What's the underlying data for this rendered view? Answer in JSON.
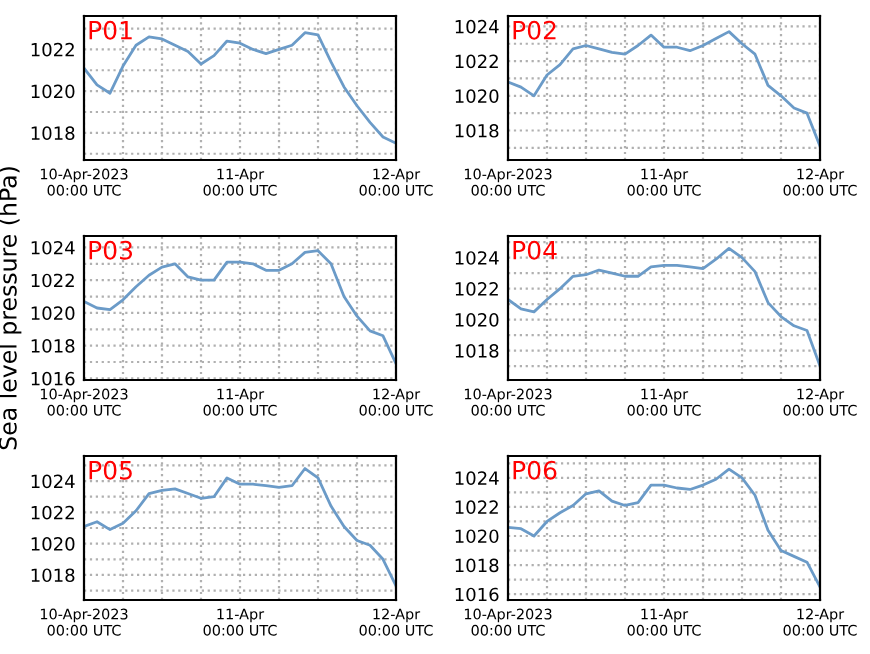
{
  "chart_data": [
    {
      "type": "line",
      "title": "P01",
      "x": [
        "2023-04-10T00:00",
        "2023-04-10T02:00",
        "2023-04-10T04:00",
        "2023-04-10T06:00",
        "2023-04-10T08:00",
        "2023-04-10T10:00",
        "2023-04-10T12:00",
        "2023-04-10T14:00",
        "2023-04-10T16:00",
        "2023-04-10T18:00",
        "2023-04-10T20:00",
        "2023-04-10T22:00",
        "2023-04-11T00:00",
        "2023-04-11T02:00",
        "2023-04-11T04:00",
        "2023-04-11T06:00",
        "2023-04-11T08:00",
        "2023-04-11T10:00",
        "2023-04-11T12:00",
        "2023-04-11T14:00",
        "2023-04-11T16:00",
        "2023-04-11T18:00",
        "2023-04-11T20:00",
        "2023-04-11T22:00",
        "2023-04-12T00:00"
      ],
      "series": [
        {
          "color": "#6b9bc8",
          "values": [
            1021.1,
            1020.3,
            1019.9,
            1021.2,
            1022.2,
            1022.6,
            1022.5,
            1022.2,
            1021.9,
            1021.3,
            1021.7,
            1022.4,
            1022.3,
            1022.0,
            1021.8,
            1022.0,
            1022.2,
            1022.8,
            1022.7,
            1021.4,
            1020.2,
            1019.3,
            1018.5,
            1017.8,
            1017.5
          ]
        }
      ],
      "xlim": [
        "2023-04-10T00:00",
        "2023-04-12T00:00"
      ],
      "xticks": [
        {
          "value": "2023-04-10T00:00",
          "label": "10-Apr-2023\n00:00 UTC"
        },
        {
          "value": "2023-04-10T06:00",
          "label": null
        },
        {
          "value": "2023-04-10T12:00",
          "label": null
        },
        {
          "value": "2023-04-10T18:00",
          "label": null
        },
        {
          "value": "2023-04-11T00:00",
          "label": "11-Apr\n00:00 UTC"
        },
        {
          "value": "2023-04-11T06:00",
          "label": null
        },
        {
          "value": "2023-04-11T12:00",
          "label": null
        },
        {
          "value": "2023-04-11T18:00",
          "label": null
        },
        {
          "value": "2023-04-12T00:00",
          "label": "12-Apr\n00:00 UTC"
        }
      ],
      "ylim": [
        1016.7,
        1023.6
      ],
      "yticks": [
        {
          "value": 1017,
          "label": null
        },
        1018,
        {
          "value": 1019,
          "label": null
        },
        1020,
        {
          "value": 1021,
          "label": null
        },
        1022,
        {
          "value": 1023,
          "label": null
        }
      ],
      "grid": true,
      "line_style": "solid",
      "marker": "none",
      "legend": false
    },
    {
      "type": "line",
      "title": "P02",
      "x": [
        "2023-04-10T00:00",
        "2023-04-10T02:00",
        "2023-04-10T04:00",
        "2023-04-10T06:00",
        "2023-04-10T08:00",
        "2023-04-10T10:00",
        "2023-04-10T12:00",
        "2023-04-10T14:00",
        "2023-04-10T16:00",
        "2023-04-10T18:00",
        "2023-04-10T20:00",
        "2023-04-10T22:00",
        "2023-04-11T00:00",
        "2023-04-11T02:00",
        "2023-04-11T04:00",
        "2023-04-11T06:00",
        "2023-04-11T08:00",
        "2023-04-11T10:00",
        "2023-04-11T12:00",
        "2023-04-11T14:00",
        "2023-04-11T16:00",
        "2023-04-11T18:00",
        "2023-04-11T20:00",
        "2023-04-11T22:00",
        "2023-04-12T00:00"
      ],
      "series": [
        {
          "color": "#6b9bc8",
          "values": [
            1020.8,
            1020.5,
            1020.0,
            1021.2,
            1021.8,
            1022.7,
            1022.9,
            1022.7,
            1022.5,
            1022.4,
            1022.9,
            1023.5,
            1022.8,
            1022.8,
            1022.6,
            1022.9,
            1023.3,
            1023.7,
            1023.0,
            1022.4,
            1020.6,
            1020.0,
            1019.3,
            1019.0,
            1017.1
          ]
        }
      ],
      "xlim": [
        "2023-04-10T00:00",
        "2023-04-12T00:00"
      ],
      "xticks": [
        {
          "value": "2023-04-10T00:00",
          "label": "10-Apr-2023\n00:00 UTC"
        },
        {
          "value": "2023-04-10T06:00",
          "label": null
        },
        {
          "value": "2023-04-10T12:00",
          "label": null
        },
        {
          "value": "2023-04-10T18:00",
          "label": null
        },
        {
          "value": "2023-04-11T00:00",
          "label": "11-Apr\n00:00 UTC"
        },
        {
          "value": "2023-04-11T06:00",
          "label": null
        },
        {
          "value": "2023-04-11T12:00",
          "label": null
        },
        {
          "value": "2023-04-11T18:00",
          "label": null
        },
        {
          "value": "2023-04-12T00:00",
          "label": "12-Apr\n00:00 UTC"
        }
      ],
      "ylim": [
        1016.3,
        1024.6
      ],
      "yticks": [
        {
          "value": 1017,
          "label": null
        },
        1018,
        {
          "value": 1019,
          "label": null
        },
        1020,
        {
          "value": 1021,
          "label": null
        },
        1022,
        {
          "value": 1023,
          "label": null
        },
        1024
      ],
      "grid": true,
      "line_style": "solid",
      "marker": "none",
      "legend": false
    },
    {
      "type": "line",
      "title": "P03",
      "ylabel": "Sea level pressure (hPa)",
      "x": [
        "2023-04-10T00:00",
        "2023-04-10T02:00",
        "2023-04-10T04:00",
        "2023-04-10T06:00",
        "2023-04-10T08:00",
        "2023-04-10T10:00",
        "2023-04-10T12:00",
        "2023-04-10T14:00",
        "2023-04-10T16:00",
        "2023-04-10T18:00",
        "2023-04-10T20:00",
        "2023-04-10T22:00",
        "2023-04-11T00:00",
        "2023-04-11T02:00",
        "2023-04-11T04:00",
        "2023-04-11T06:00",
        "2023-04-11T08:00",
        "2023-04-11T10:00",
        "2023-04-11T12:00",
        "2023-04-11T14:00",
        "2023-04-11T16:00",
        "2023-04-11T18:00",
        "2023-04-11T20:00",
        "2023-04-11T22:00",
        "2023-04-12T00:00"
      ],
      "series": [
        {
          "color": "#6b9bc8",
          "values": [
            1020.7,
            1020.3,
            1020.2,
            1020.8,
            1021.6,
            1022.3,
            1022.8,
            1023.0,
            1022.2,
            1022.0,
            1022.0,
            1023.1,
            1023.1,
            1023.0,
            1022.6,
            1022.6,
            1023.0,
            1023.7,
            1023.8,
            1023.0,
            1021.0,
            1019.8,
            1018.9,
            1018.6,
            1016.9
          ]
        }
      ],
      "xlim": [
        "2023-04-10T00:00",
        "2023-04-12T00:00"
      ],
      "xticks": [
        {
          "value": "2023-04-10T00:00",
          "label": "10-Apr-2023\n00:00 UTC"
        },
        {
          "value": "2023-04-10T06:00",
          "label": null
        },
        {
          "value": "2023-04-10T12:00",
          "label": null
        },
        {
          "value": "2023-04-10T18:00",
          "label": null
        },
        {
          "value": "2023-04-11T00:00",
          "label": "11-Apr\n00:00 UTC"
        },
        {
          "value": "2023-04-11T06:00",
          "label": null
        },
        {
          "value": "2023-04-11T12:00",
          "label": null
        },
        {
          "value": "2023-04-11T18:00",
          "label": null
        },
        {
          "value": "2023-04-12T00:00",
          "label": "12-Apr\n00:00 UTC"
        }
      ],
      "ylim": [
        1015.9,
        1024.7
      ],
      "yticks": [
        1016,
        {
          "value": 1017,
          "label": null
        },
        1018,
        {
          "value": 1019,
          "label": null
        },
        1020,
        {
          "value": 1021,
          "label": null
        },
        1022,
        {
          "value": 1023,
          "label": null
        },
        1024
      ],
      "grid": true,
      "line_style": "solid",
      "marker": "none",
      "legend": false
    },
    {
      "type": "line",
      "title": "P04",
      "x": [
        "2023-04-10T00:00",
        "2023-04-10T02:00",
        "2023-04-10T04:00",
        "2023-04-10T06:00",
        "2023-04-10T08:00",
        "2023-04-10T10:00",
        "2023-04-10T12:00",
        "2023-04-10T14:00",
        "2023-04-10T16:00",
        "2023-04-10T18:00",
        "2023-04-10T20:00",
        "2023-04-10T22:00",
        "2023-04-11T00:00",
        "2023-04-11T02:00",
        "2023-04-11T04:00",
        "2023-04-11T06:00",
        "2023-04-11T08:00",
        "2023-04-11T10:00",
        "2023-04-11T12:00",
        "2023-04-11T14:00",
        "2023-04-11T16:00",
        "2023-04-11T18:00",
        "2023-04-11T20:00",
        "2023-04-11T22:00",
        "2023-04-12T00:00"
      ],
      "series": [
        {
          "color": "#6b9bc8",
          "values": [
            1021.3,
            1020.7,
            1020.5,
            1021.3,
            1022.0,
            1022.8,
            1022.9,
            1023.2,
            1023.0,
            1022.8,
            1022.8,
            1023.4,
            1023.5,
            1023.5,
            1023.4,
            1023.3,
            1023.9,
            1024.6,
            1024.0,
            1023.1,
            1021.1,
            1020.2,
            1019.6,
            1019.3,
            1017.0
          ]
        }
      ],
      "xlim": [
        "2023-04-10T00:00",
        "2023-04-12T00:00"
      ],
      "xticks": [
        {
          "value": "2023-04-10T00:00",
          "label": "10-Apr-2023\n00:00 UTC"
        },
        {
          "value": "2023-04-10T06:00",
          "label": null
        },
        {
          "value": "2023-04-10T12:00",
          "label": null
        },
        {
          "value": "2023-04-10T18:00",
          "label": null
        },
        {
          "value": "2023-04-11T00:00",
          "label": "11-Apr\n00:00 UTC"
        },
        {
          "value": "2023-04-11T06:00",
          "label": null
        },
        {
          "value": "2023-04-11T12:00",
          "label": null
        },
        {
          "value": "2023-04-11T18:00",
          "label": null
        },
        {
          "value": "2023-04-12T00:00",
          "label": "12-Apr\n00:00 UTC"
        }
      ],
      "ylim": [
        1016.1,
        1025.4
      ],
      "yticks": [
        {
          "value": 1017,
          "label": null
        },
        1018,
        {
          "value": 1019,
          "label": null
        },
        1020,
        {
          "value": 1021,
          "label": null
        },
        1022,
        {
          "value": 1023,
          "label": null
        },
        1024,
        {
          "value": 1025,
          "label": null
        }
      ],
      "grid": true,
      "line_style": "solid",
      "marker": "none",
      "legend": false
    },
    {
      "type": "line",
      "title": "P05",
      "x": [
        "2023-04-10T00:00",
        "2023-04-10T02:00",
        "2023-04-10T04:00",
        "2023-04-10T06:00",
        "2023-04-10T08:00",
        "2023-04-10T10:00",
        "2023-04-10T12:00",
        "2023-04-10T14:00",
        "2023-04-10T16:00",
        "2023-04-10T18:00",
        "2023-04-10T20:00",
        "2023-04-10T22:00",
        "2023-04-11T00:00",
        "2023-04-11T02:00",
        "2023-04-11T04:00",
        "2023-04-11T06:00",
        "2023-04-11T08:00",
        "2023-04-11T10:00",
        "2023-04-11T12:00",
        "2023-04-11T14:00",
        "2023-04-11T16:00",
        "2023-04-11T18:00",
        "2023-04-11T20:00",
        "2023-04-11T22:00",
        "2023-04-12T00:00"
      ],
      "series": [
        {
          "color": "#6b9bc8",
          "values": [
            1021.1,
            1021.4,
            1020.9,
            1021.3,
            1022.1,
            1023.2,
            1023.4,
            1023.5,
            1023.2,
            1022.9,
            1023.0,
            1024.2,
            1023.8,
            1023.8,
            1023.7,
            1023.6,
            1023.7,
            1024.8,
            1024.2,
            1022.4,
            1021.1,
            1020.2,
            1019.9,
            1019.0,
            1017.3
          ]
        }
      ],
      "xlim": [
        "2023-04-10T00:00",
        "2023-04-12T00:00"
      ],
      "xticks": [
        {
          "value": "2023-04-10T00:00",
          "label": "10-Apr-2023\n00:00 UTC"
        },
        {
          "value": "2023-04-10T06:00",
          "label": null
        },
        {
          "value": "2023-04-10T12:00",
          "label": null
        },
        {
          "value": "2023-04-10T18:00",
          "label": null
        },
        {
          "value": "2023-04-11T00:00",
          "label": "11-Apr\n00:00 UTC"
        },
        {
          "value": "2023-04-11T06:00",
          "label": null
        },
        {
          "value": "2023-04-11T12:00",
          "label": null
        },
        {
          "value": "2023-04-11T18:00",
          "label": null
        },
        {
          "value": "2023-04-12T00:00",
          "label": "12-Apr\n00:00 UTC"
        }
      ],
      "ylim": [
        1016.4,
        1025.6
      ],
      "yticks": [
        {
          "value": 1017,
          "label": null
        },
        1018,
        {
          "value": 1019,
          "label": null
        },
        1020,
        {
          "value": 1021,
          "label": null
        },
        1022,
        {
          "value": 1023,
          "label": null
        },
        1024,
        {
          "value": 1025,
          "label": null
        }
      ],
      "grid": true,
      "line_style": "solid",
      "marker": "none",
      "legend": false
    },
    {
      "type": "line",
      "title": "P06",
      "x": [
        "2023-04-10T00:00",
        "2023-04-10T02:00",
        "2023-04-10T04:00",
        "2023-04-10T06:00",
        "2023-04-10T08:00",
        "2023-04-10T10:00",
        "2023-04-10T12:00",
        "2023-04-10T14:00",
        "2023-04-10T16:00",
        "2023-04-10T18:00",
        "2023-04-10T20:00",
        "2023-04-10T22:00",
        "2023-04-11T00:00",
        "2023-04-11T02:00",
        "2023-04-11T04:00",
        "2023-04-11T06:00",
        "2023-04-11T08:00",
        "2023-04-11T10:00",
        "2023-04-11T12:00",
        "2023-04-11T14:00",
        "2023-04-11T16:00",
        "2023-04-11T18:00",
        "2023-04-11T20:00",
        "2023-04-11T22:00",
        "2023-04-12T00:00"
      ],
      "series": [
        {
          "color": "#6b9bc8",
          "values": [
            1020.6,
            1020.5,
            1020.0,
            1021.0,
            1021.6,
            1022.1,
            1022.9,
            1023.1,
            1022.4,
            1022.1,
            1022.3,
            1023.5,
            1023.5,
            1023.3,
            1023.2,
            1023.5,
            1023.9,
            1024.6,
            1024.0,
            1022.8,
            1020.4,
            1019.0,
            1018.6,
            1018.2,
            1016.5
          ]
        }
      ],
      "xlim": [
        "2023-04-10T00:00",
        "2023-04-12T00:00"
      ],
      "xticks": [
        {
          "value": "2023-04-10T00:00",
          "label": "10-Apr-2023\n00:00 UTC"
        },
        {
          "value": "2023-04-10T06:00",
          "label": null
        },
        {
          "value": "2023-04-10T12:00",
          "label": null
        },
        {
          "value": "2023-04-10T18:00",
          "label": null
        },
        {
          "value": "2023-04-11T00:00",
          "label": "11-Apr\n00:00 UTC"
        },
        {
          "value": "2023-04-11T06:00",
          "label": null
        },
        {
          "value": "2023-04-11T12:00",
          "label": null
        },
        {
          "value": "2023-04-11T18:00",
          "label": null
        },
        {
          "value": "2023-04-12T00:00",
          "label": "12-Apr\n00:00 UTC"
        }
      ],
      "ylim": [
        1015.6,
        1025.5
      ],
      "yticks": [
        1016,
        {
          "value": 1017,
          "label": null
        },
        1018,
        {
          "value": 1019,
          "label": null
        },
        1020,
        {
          "value": 1021,
          "label": null
        },
        1022,
        {
          "value": 1023,
          "label": null
        },
        1024,
        {
          "value": 1025,
          "label": null
        }
      ],
      "grid": true,
      "line_style": "solid",
      "marker": "none",
      "legend": false
    }
  ]
}
